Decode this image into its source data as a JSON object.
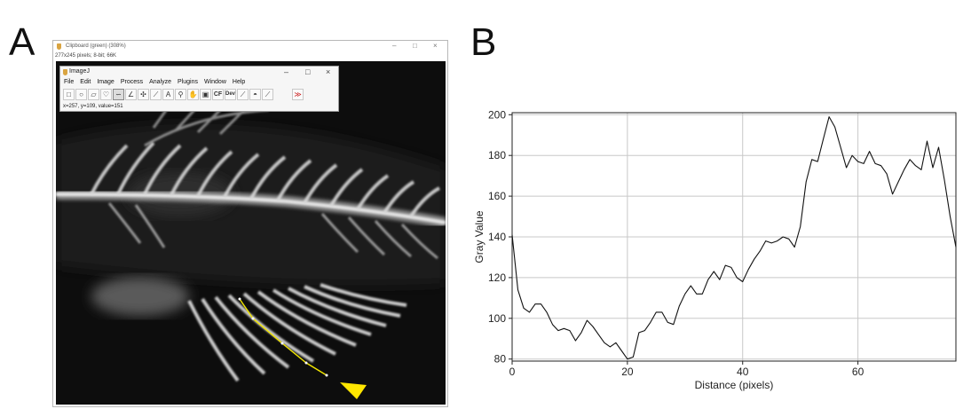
{
  "panels": {
    "a": "A",
    "b": "B"
  },
  "image_window": {
    "title": "Clipboard (green) (308%)",
    "info": "277x245 pixels; 8-bit; 66K",
    "controls": [
      "–",
      "□",
      "×"
    ]
  },
  "imagej": {
    "title": "ImageJ",
    "controls": [
      "–",
      "□",
      "×"
    ],
    "menu": [
      "File",
      "Edit",
      "Image",
      "Process",
      "Analyze",
      "Plugins",
      "Window",
      "Help"
    ],
    "tools": [
      {
        "icon": "rectangle-icon",
        "glyph": "□"
      },
      {
        "icon": "oval-icon",
        "glyph": "○"
      },
      {
        "icon": "polygon-icon",
        "glyph": "▱"
      },
      {
        "icon": "freehand-icon",
        "glyph": "♡"
      },
      {
        "icon": "segmented-line-icon",
        "glyph": "∽"
      },
      {
        "icon": "angle-icon",
        "glyph": "∠"
      },
      {
        "icon": "point-icon",
        "glyph": "✣"
      },
      {
        "icon": "wand-icon",
        "glyph": "⟋"
      },
      {
        "icon": "text-icon",
        "glyph": "A"
      },
      {
        "icon": "magnifier-icon",
        "glyph": "⚲"
      },
      {
        "icon": "hand-icon",
        "glyph": "✋"
      },
      {
        "icon": "eyedropper-icon",
        "glyph": "▣"
      },
      {
        "icon": "cf-icon",
        "glyph": "CF"
      },
      {
        "icon": "dev-icon",
        "glyph": "Dev"
      },
      {
        "icon": "brush-icon",
        "glyph": "⟋"
      },
      {
        "icon": "flood-fill-icon",
        "glyph": "◓"
      },
      {
        "icon": "pencil-icon",
        "glyph": "⟋"
      },
      {
        "icon": "more-tools-icon",
        "glyph": "≫"
      }
    ],
    "status": "x=257, y=109, value=151"
  },
  "colors": {
    "profile_line": "#f2e600",
    "arrowhead": "#ffe600",
    "plot_line": "#111111",
    "grid": "#c8c8c8"
  },
  "chart_data": {
    "type": "line",
    "xlabel": "Distance (pixels)",
    "ylabel": "Gray Value",
    "xlim": [
      0,
      77
    ],
    "ylim": [
      79,
      201
    ],
    "xticks": [
      0,
      20,
      40,
      60
    ],
    "yticks": [
      80,
      100,
      120,
      140,
      160,
      180,
      200
    ],
    "grid": true,
    "series": [
      {
        "x": [
          0,
          1,
          2,
          3,
          4,
          5,
          6,
          7,
          8,
          9,
          10,
          11,
          12,
          13,
          14,
          15,
          16,
          17,
          18,
          19,
          20,
          21,
          22,
          23,
          24,
          25,
          26,
          27,
          28,
          29,
          30,
          31,
          32,
          33,
          34,
          35,
          36,
          37,
          38,
          39,
          40,
          41,
          42,
          43,
          44,
          45,
          46,
          47,
          48,
          49,
          50,
          51,
          52,
          53,
          54,
          55,
          56,
          57,
          58,
          59,
          60,
          61,
          62,
          63,
          64,
          65,
          66,
          67,
          68,
          69,
          70,
          71,
          72,
          73,
          74,
          75,
          76,
          77
        ],
        "y": [
          141,
          114,
          105,
          103,
          107,
          107,
          103,
          97,
          94,
          95,
          94,
          89,
          93,
          99,
          96,
          92,
          88,
          86,
          88,
          84,
          80,
          81,
          93,
          94,
          98,
          103,
          103,
          98,
          97,
          106,
          112,
          116,
          112,
          112,
          119,
          123,
          119,
          126,
          125,
          120,
          118,
          124,
          129,
          133,
          138,
          137,
          138,
          140,
          139,
          135,
          145,
          167,
          178,
          177,
          188,
          199,
          194,
          184,
          174,
          180,
          177,
          176,
          182,
          176,
          175,
          171,
          161,
          167,
          173,
          178,
          175,
          173,
          187,
          174,
          184,
          168,
          150,
          135
        ]
      }
    ]
  }
}
